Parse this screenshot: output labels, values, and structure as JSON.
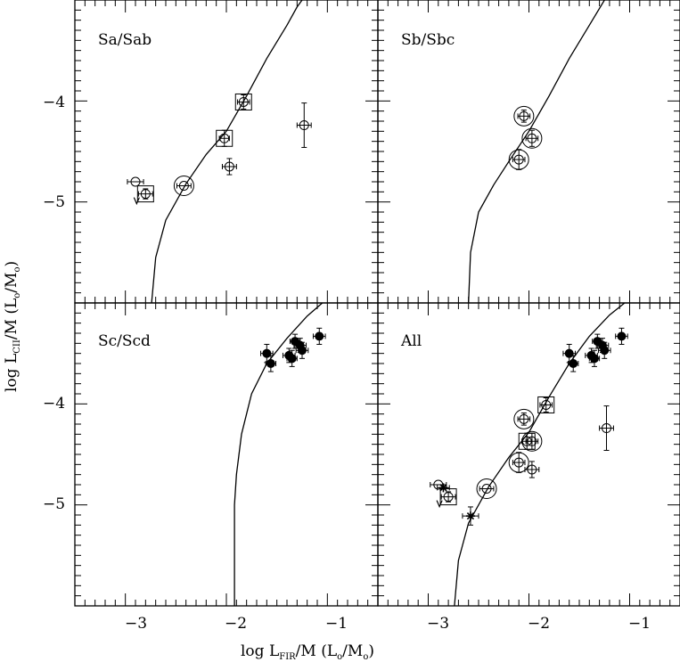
{
  "figure": {
    "xlabel": {
      "prefix": "log L",
      "sub": "FIR",
      "suffix": "/M (L",
      "sub2": "o",
      "mid": "/M",
      "sub3": "o",
      "end": ")"
    },
    "ylabel": {
      "prefix": "log L",
      "sub": "CII",
      "suffix": "/M (L",
      "sub2": "o",
      "mid": "/M",
      "sub3": "o",
      "end": ")"
    }
  },
  "chart_data": [
    {
      "type": "scatter",
      "panel": "top-left",
      "label": "Sa/Sab",
      "xlim": [
        -3.5,
        -0.5
      ],
      "ylim": [
        -6.0,
        -3.0
      ],
      "yticks": [
        -5,
        -4
      ],
      "points": [
        {
          "x": -2.9,
          "y": -4.8,
          "marker": "open-circle",
          "xerr": 0.08
        },
        {
          "x": -2.8,
          "y": -4.92,
          "marker": "open-circle-in-square",
          "xerr": 0.07,
          "yerr": 0.05,
          "upper_limit": true
        },
        {
          "x": -2.42,
          "y": -4.84,
          "marker": "open-circle-in-circle",
          "xerr": 0.07
        },
        {
          "x": -2.02,
          "y": -4.37,
          "marker": "open-circle-in-square",
          "xerr": 0.05,
          "yerr": 0.08
        },
        {
          "x": -1.83,
          "y": -4.01,
          "marker": "open-circle-in-square",
          "xerr": 0.06,
          "yerr": 0.07
        },
        {
          "x": -1.97,
          "y": -4.65,
          "marker": "open-circle",
          "xerr": 0.07,
          "yerr": 0.08
        },
        {
          "x": -1.23,
          "y": -4.24,
          "marker": "open-circle",
          "xerr": 0.07,
          "yerr": 0.22
        }
      ],
      "curve": [
        [
          -2.74,
          -6.0
        ],
        [
          -2.7,
          -5.55
        ],
        [
          -2.6,
          -5.18
        ],
        [
          -2.4,
          -4.82
        ],
        [
          -2.2,
          -4.53
        ],
        [
          -2.0,
          -4.3
        ],
        [
          -1.8,
          -3.95
        ],
        [
          -1.6,
          -3.58
        ],
        [
          -1.4,
          -3.25
        ],
        [
          -1.3,
          -3.07
        ],
        [
          -1.25,
          -3.0
        ]
      ]
    },
    {
      "type": "scatter",
      "panel": "top-right",
      "label": "Sb/Sbc",
      "xlim": [
        -3.5,
        -0.5
      ],
      "ylim": [
        -6.0,
        -3.0
      ],
      "points": [
        {
          "x": -2.05,
          "y": -4.15,
          "marker": "open-circle-in-circle",
          "xerr": 0.06,
          "yerr": 0.06
        },
        {
          "x": -1.97,
          "y": -4.37,
          "marker": "open-circle-in-circle",
          "xerr": 0.06,
          "yerr": 0.08
        },
        {
          "x": -2.1,
          "y": -4.58,
          "marker": "open-circle-in-circle",
          "xerr": 0.06,
          "yerr": 0.1
        }
      ],
      "curve": [
        [
          -2.6,
          -6.0
        ],
        [
          -2.58,
          -5.5
        ],
        [
          -2.5,
          -5.1
        ],
        [
          -2.35,
          -4.83
        ],
        [
          -2.2,
          -4.6
        ],
        [
          -2.0,
          -4.3
        ],
        [
          -1.8,
          -3.95
        ],
        [
          -1.6,
          -3.58
        ],
        [
          -1.4,
          -3.25
        ],
        [
          -1.25,
          -3.0
        ]
      ]
    },
    {
      "type": "scatter",
      "panel": "bottom-left",
      "label": "Sc/Scd",
      "xlim": [
        -3.5,
        -0.5
      ],
      "ylim": [
        -6.0,
        -3.0
      ],
      "yticks": [
        -5,
        -4
      ],
      "xticks": [
        -3,
        -2,
        -1
      ],
      "points": [
        {
          "x": -1.6,
          "y": -3.5,
          "marker": "filled-circle",
          "xerr": 0.06,
          "yerr": 0.09
        },
        {
          "x": -1.56,
          "y": -3.6,
          "marker": "filled-circle",
          "xerr": 0.05,
          "yerr": 0.08
        },
        {
          "x": -1.38,
          "y": -3.52,
          "marker": "filled-circle",
          "xerr": 0.06,
          "yerr": 0.07
        },
        {
          "x": -1.35,
          "y": -3.55,
          "marker": "filled-circle",
          "xerr": 0.05,
          "yerr": 0.08
        },
        {
          "x": -1.32,
          "y": -3.38,
          "marker": "filled-circle",
          "xerr": 0.05,
          "yerr": 0.07
        },
        {
          "x": -1.27,
          "y": -3.42,
          "marker": "filled-circle",
          "xerr": 0.06,
          "yerr": 0.07
        },
        {
          "x": -1.25,
          "y": -3.47,
          "marker": "filled-circle",
          "xerr": 0.06,
          "yerr": 0.08
        },
        {
          "x": -1.08,
          "y": -3.33,
          "marker": "filled-circle",
          "xerr": 0.06,
          "yerr": 0.08
        }
      ],
      "curve": [
        [
          -1.92,
          -6.0
        ],
        [
          -1.92,
          -5.0
        ],
        [
          -1.9,
          -4.7
        ],
        [
          -1.85,
          -4.3
        ],
        [
          -1.75,
          -3.9
        ],
        [
          -1.6,
          -3.6
        ],
        [
          -1.4,
          -3.35
        ],
        [
          -1.2,
          -3.13
        ],
        [
          -1.05,
          -3.0
        ]
      ]
    },
    {
      "type": "scatter",
      "panel": "bottom-right",
      "label": "All",
      "xlim": [
        -3.5,
        -0.5
      ],
      "ylim": [
        -6.0,
        -3.0
      ],
      "xticks": [
        -3,
        -2,
        -1
      ],
      "points": [
        {
          "x": -2.9,
          "y": -4.8,
          "marker": "open-circle",
          "xerr": 0.08
        },
        {
          "x": -2.8,
          "y": -4.92,
          "marker": "open-circle-in-square",
          "xerr": 0.07,
          "yerr": 0.05,
          "upper_limit": true
        },
        {
          "x": -2.85,
          "y": -4.83,
          "marker": "star",
          "xerr": 0.06
        },
        {
          "x": -2.58,
          "y": -5.11,
          "marker": "star",
          "xerr": 0.08,
          "yerr": 0.09
        },
        {
          "x": -2.42,
          "y": -4.84,
          "marker": "open-circle-in-circle",
          "xerr": 0.07
        },
        {
          "x": -2.1,
          "y": -4.58,
          "marker": "open-circle-in-circle",
          "xerr": 0.06,
          "yerr": 0.1
        },
        {
          "x": -2.05,
          "y": -4.15,
          "marker": "open-circle-in-circle",
          "xerr": 0.06,
          "yerr": 0.06
        },
        {
          "x": -2.02,
          "y": -4.37,
          "marker": "open-circle-in-square",
          "xerr": 0.05,
          "yerr": 0.08
        },
        {
          "x": -1.97,
          "y": -4.37,
          "marker": "open-circle-in-circle",
          "xerr": 0.06,
          "yerr": 0.08
        },
        {
          "x": -1.97,
          "y": -4.65,
          "marker": "open-circle",
          "xerr": 0.07,
          "yerr": 0.08
        },
        {
          "x": -1.83,
          "y": -4.01,
          "marker": "open-circle-in-square",
          "xerr": 0.06,
          "yerr": 0.07
        },
        {
          "x": -1.23,
          "y": -4.24,
          "marker": "open-circle",
          "xerr": 0.07,
          "yerr": 0.22
        },
        {
          "x": -1.6,
          "y": -3.5,
          "marker": "filled-circle",
          "xerr": 0.06,
          "yerr": 0.09
        },
        {
          "x": -1.56,
          "y": -3.6,
          "marker": "filled-circle",
          "xerr": 0.05,
          "yerr": 0.08
        },
        {
          "x": -1.38,
          "y": -3.52,
          "marker": "filled-circle",
          "xerr": 0.06,
          "yerr": 0.07
        },
        {
          "x": -1.35,
          "y": -3.55,
          "marker": "filled-circle",
          "xerr": 0.05,
          "yerr": 0.08
        },
        {
          "x": -1.32,
          "y": -3.38,
          "marker": "filled-circle",
          "xerr": 0.05,
          "yerr": 0.07
        },
        {
          "x": -1.27,
          "y": -3.42,
          "marker": "filled-circle",
          "xerr": 0.06,
          "yerr": 0.07
        },
        {
          "x": -1.25,
          "y": -3.47,
          "marker": "filled-circle",
          "xerr": 0.06,
          "yerr": 0.08
        },
        {
          "x": -1.08,
          "y": -3.33,
          "marker": "filled-circle",
          "xerr": 0.06,
          "yerr": 0.08
        }
      ],
      "curve": [
        [
          -2.74,
          -6.0
        ],
        [
          -2.7,
          -5.55
        ],
        [
          -2.6,
          -5.18
        ],
        [
          -2.4,
          -4.82
        ],
        [
          -2.2,
          -4.53
        ],
        [
          -2.0,
          -4.28
        ],
        [
          -1.8,
          -3.93
        ],
        [
          -1.6,
          -3.6
        ],
        [
          -1.4,
          -3.33
        ],
        [
          -1.2,
          -3.12
        ],
        [
          -1.05,
          -3.0
        ]
      ]
    }
  ]
}
